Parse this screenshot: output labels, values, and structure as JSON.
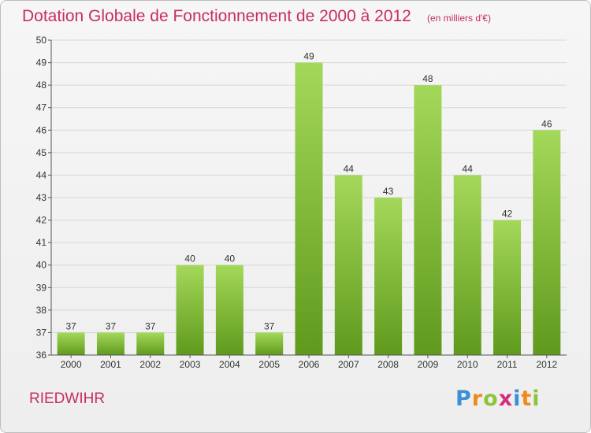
{
  "chart_data": {
    "type": "bar",
    "title": "Dotation Globale de Fonctionnement de 2000 à 2012",
    "subtitle": "(en milliers d'€)",
    "xlabel": "",
    "ylabel": "",
    "categories": [
      "2000",
      "2001",
      "2002",
      "2003",
      "2004",
      "2005",
      "2006",
      "2007",
      "2008",
      "2009",
      "2010",
      "2011",
      "2012"
    ],
    "values": [
      37,
      37,
      37,
      40,
      40,
      37,
      49,
      44,
      43,
      48,
      44,
      42,
      46
    ],
    "ylim": [
      36,
      50
    ],
    "yticks": [
      36,
      37,
      38,
      39,
      40,
      41,
      42,
      43,
      44,
      45,
      46,
      47,
      48,
      49,
      50
    ],
    "grid": true,
    "legend": "none",
    "bar_color": "#7dbd2f",
    "bar_color_light": "#a4d85a",
    "bar_color_dark": "#5f9a1c"
  },
  "place_name": "RIEDWIHR",
  "logo": {
    "letters": [
      "P",
      "r",
      "o",
      "x",
      "i",
      "t",
      "i"
    ],
    "colors": [
      "#3a8fd6",
      "#f08a1c",
      "#8cc43c",
      "#d62d7a",
      "#3a8fd6",
      "#f08a1c",
      "#8cc43c"
    ]
  },
  "colors": {
    "accent": "#c72d63",
    "grid": "#d6d6d6"
  }
}
